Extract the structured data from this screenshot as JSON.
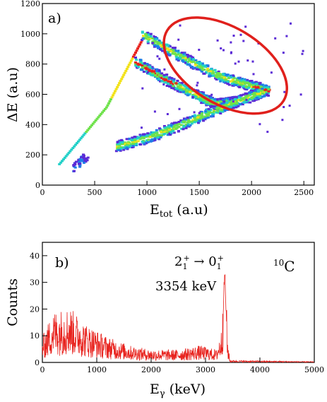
{
  "chart_data": [
    {
      "type": "heatmap",
      "panel_label": "a)",
      "xlabel_main": "E",
      "xlabel_sub": "tot",
      "xlabel_unit": " (a.u)",
      "ylabel": "ΔE (a.u)",
      "xlim": [
        0,
        2600
      ],
      "ylim": [
        0,
        1200
      ],
      "x_ticks": [
        0,
        500,
        1000,
        1500,
        2000,
        2500
      ],
      "y_ticks": [
        0,
        200,
        400,
        600,
        800,
        1000,
        1200
      ],
      "colors": {
        "low": "#5b2bd6",
        "mid_low": "#1f7de8",
        "mid": "#22d0c8",
        "mid_high": "#6ee24a",
        "high": "#f2e21a",
        "top": "#e8231e"
      },
      "bands": [
        {
          "name": "straight line",
          "points": [
            [
              150,
              145
            ],
            [
              600,
              520
            ],
            [
              960,
              990
            ]
          ]
        },
        {
          "name": "upper branch",
          "points": [
            [
              950,
              1000
            ],
            [
              1300,
              860
            ],
            [
              1700,
              720
            ],
            [
              2000,
              660
            ],
            [
              2150,
              630
            ]
          ]
        },
        {
          "name": "middle branch",
          "points": [
            [
              880,
              820
            ],
            [
              1200,
              690
            ],
            [
              1500,
              590
            ],
            [
              1650,
              540
            ],
            [
              1850,
              560
            ]
          ]
        },
        {
          "name": "lower branch",
          "points": [
            [
              700,
              260
            ],
            [
              1000,
              320
            ],
            [
              1300,
              400
            ],
            [
              1600,
              490
            ],
            [
              1850,
              560
            ],
            [
              2100,
              620
            ]
          ]
        },
        {
          "name": "low island",
          "points": [
            [
              280,
              110
            ],
            [
              350,
              160
            ],
            [
              420,
              210
            ]
          ]
        }
      ],
      "annotation": {
        "shape": "ellipse",
        "color": "#e0201c",
        "center": [
          1750,
          790
        ],
        "semi_major": 650,
        "semi_minor": 110,
        "angle_deg": -18
      }
    },
    {
      "type": "line",
      "panel_label": "b)",
      "xlabel_main": "E",
      "xlabel_sub": "γ",
      "xlabel_unit": " (keV)",
      "ylabel": "Counts",
      "xlim": [
        0,
        5000
      ],
      "ylim": [
        0,
        45
      ],
      "x_ticks": [
        0,
        1000,
        2000,
        3000,
        4000,
        5000
      ],
      "y_ticks": [
        0,
        10,
        20,
        30,
        40
      ],
      "line_color": "#e8231e",
      "envelope": [
        {
          "x": 0,
          "y": 6
        },
        {
          "x": 200,
          "y": 12
        },
        {
          "x": 500,
          "y": 13
        },
        {
          "x": 800,
          "y": 9
        },
        {
          "x": 1200,
          "y": 6
        },
        {
          "x": 1600,
          "y": 4
        },
        {
          "x": 2000,
          "y": 3
        },
        {
          "x": 2500,
          "y": 3
        },
        {
          "x": 2900,
          "y": 4
        },
        {
          "x": 3200,
          "y": 3
        },
        {
          "x": 3300,
          "y": 8
        },
        {
          "x": 3354,
          "y": 36
        },
        {
          "x": 3400,
          "y": 6
        },
        {
          "x": 3450,
          "y": 0.5
        },
        {
          "x": 5000,
          "y": 0.2
        }
      ],
      "transition_main": "2",
      "transition_sub1": "1",
      "transition_sup1": "+",
      "transition_arrow": " → ",
      "transition_end": "0",
      "transition_sub2": "1",
      "transition_sup2": "+",
      "energy_label": "3354 keV",
      "isotope_mass": "10",
      "isotope_symbol": "C"
    }
  ]
}
